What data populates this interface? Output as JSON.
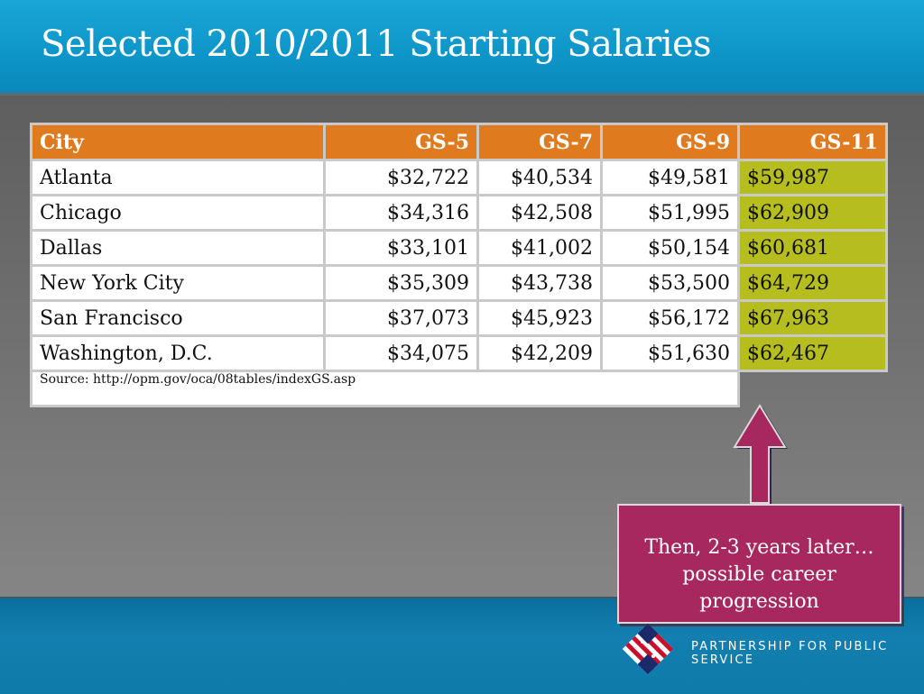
{
  "slide": {
    "title": "Selected 2010/2011 Starting Salaries"
  },
  "table": {
    "headers": [
      "City",
      "GS-5",
      "GS-7",
      "GS-9",
      "GS-11"
    ],
    "rows": [
      {
        "city": "Atlanta",
        "gs5": "$32,722",
        "gs7": "$40,534",
        "gs9": "$49,581",
        "gs11": "$59,987"
      },
      {
        "city": "Chicago",
        "gs5": "$34,316",
        "gs7": "$42,508",
        "gs9": "$51,995",
        "gs11": "$62,909"
      },
      {
        "city": "Dallas",
        "gs5": "$33,101",
        "gs7": "$41,002",
        "gs9": "$50,154",
        "gs11": "$60,681"
      },
      {
        "city": "New York City",
        "gs5": "$35,309",
        "gs7": "$43,738",
        "gs9": "$53,500",
        "gs11": "$64,729"
      },
      {
        "city": "San Francisco",
        "gs5": "$37,073",
        "gs7": "$45,923",
        "gs9": "$56,172",
        "gs11": "$67,963"
      },
      {
        "city": "Washington, D.C.",
        "gs5": "$34,075",
        "gs7": "$42,209",
        "gs9": "$51,630",
        "gs11": "$62,467"
      }
    ],
    "source": "Source: http://opm.gov/oca/08tables/indexGS.asp"
  },
  "callout": {
    "line1": "Then, 2-3 years later…",
    "line2": "possible career",
    "line3": "progression"
  },
  "footer": {
    "org_name": "PARTNERSHIP FOR PUBLIC SERVICE"
  },
  "colors": {
    "header_blue": "#0e95c8",
    "table_header_orange": "#e07a1f",
    "gs11_highlight": "#b5bd1f",
    "callout_magenta": "#a6285f"
  }
}
